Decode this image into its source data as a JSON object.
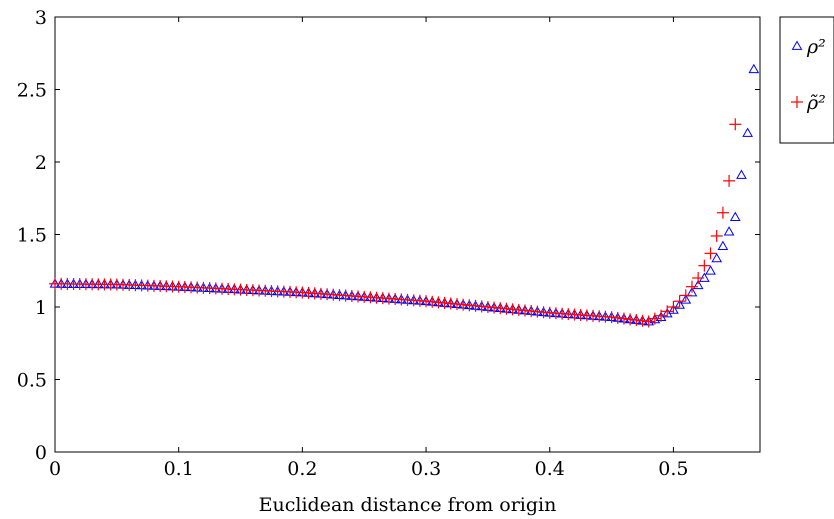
{
  "chart_data": {
    "type": "scatter",
    "title": "",
    "xlabel": "Euclidean distance from origin",
    "ylabel": "",
    "xlim": [
      0,
      0.57
    ],
    "ylim": [
      0,
      3
    ],
    "xticks": [
      0,
      0.1,
      0.2,
      0.3,
      0.4,
      0.5
    ],
    "xtick_labels": [
      "0",
      "0.1",
      "0.2",
      "0.3",
      "0.4",
      "0.5"
    ],
    "yticks": [
      0,
      0.5,
      1,
      1.5,
      2,
      2.5,
      3
    ],
    "ytick_labels": [
      "0",
      "0.5",
      "1",
      "1.5",
      "2",
      "2.5",
      "3"
    ],
    "grid": false,
    "legend_position": "outside-top-right",
    "series": [
      {
        "name": "ρ²",
        "marker": "triangle",
        "color": "#0000ff",
        "x": [
          0,
          0.05,
          0.1,
          0.15,
          0.2,
          0.25,
          0.3,
          0.35,
          0.4,
          0.45,
          0.48,
          0.49,
          0.5,
          0.51,
          0.52,
          0.53,
          0.54,
          0.55,
          0.56,
          0.565
        ],
        "y": [
          1.16,
          1.155,
          1.14,
          1.12,
          1.1,
          1.07,
          1.04,
          1.0,
          0.96,
          0.93,
          0.9,
          0.93,
          0.98,
          1.05,
          1.15,
          1.25,
          1.42,
          1.62,
          2.2,
          2.64
        ]
      },
      {
        "name": "ρ̃²",
        "marker": "plus",
        "color": "#ff0000",
        "x": [
          0,
          0.05,
          0.1,
          0.15,
          0.2,
          0.25,
          0.3,
          0.35,
          0.4,
          0.45,
          0.48,
          0.49,
          0.5,
          0.51,
          0.52,
          0.53,
          0.535,
          0.54,
          0.545,
          0.55
        ],
        "y": [
          1.16,
          1.155,
          1.14,
          1.12,
          1.1,
          1.07,
          1.04,
          1.0,
          0.96,
          0.93,
          0.9,
          0.94,
          1.0,
          1.08,
          1.2,
          1.37,
          1.49,
          1.65,
          1.87,
          2.26
        ]
      }
    ]
  }
}
